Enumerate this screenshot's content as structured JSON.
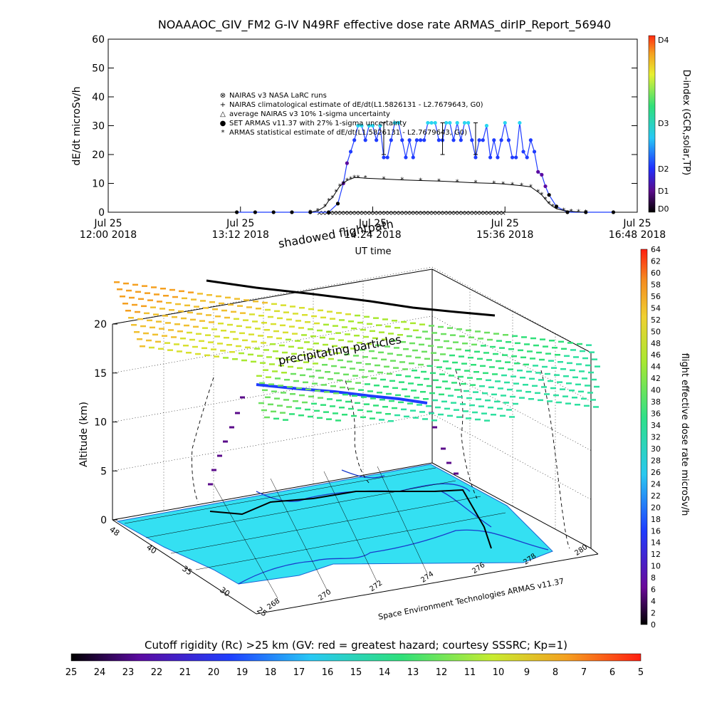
{
  "title": "NOAAAOC_GIV_FM2 G-IV    N49RF   effective dose rate ARMAS_dirIP_Report_56940",
  "colors": {
    "set_armas": "#1f3cff",
    "set_armas_fill": "#29d6f0",
    "nairas": "#000000",
    "armas_stat": "#3a0a5a",
    "map_fill": "#34e0f2",
    "flight_path": "#000000"
  },
  "chart_data": [
    {
      "type": "line",
      "ylabel": "dE/dt microSv/h",
      "xlabel": "UT time",
      "ylim": [
        0,
        60
      ],
      "yticks": [
        0,
        10,
        20,
        30,
        40,
        50,
        60
      ],
      "xticks": [
        {
          "day": "Jul 25",
          "time": "12:00 2018"
        },
        {
          "day": "Jul 25",
          "time": "13:12 2018"
        },
        {
          "day": "Jul 25",
          "time": "14:24 2018"
        },
        {
          "day": "Jul 25",
          "time": "15:36 2018"
        },
        {
          "day": "Jul 25",
          "time": "16:48 2018"
        }
      ],
      "xrange_minutes": [
        0,
        288
      ],
      "legend": [
        {
          "symbol": "⊗",
          "label": "NAIRAS v3 NASA LaRC runs"
        },
        {
          "symbol": "+",
          "label": "NAIRAS climatological estimate of dE/dt(L1.5826131 - L2.7679643, G0)"
        },
        {
          "symbol": "△",
          "label": "average NAIRAS v3 10% 1-sigma uncertainty"
        },
        {
          "symbol": "●",
          "label": "SET ARMAS v11.37 with 27% 1-sigma uncertainty"
        },
        {
          "symbol": "*",
          "label": "ARMAS statistical estimate of dE/dt(L1.5826131 - L2.7679643, G0)"
        }
      ],
      "series": [
        {
          "name": "SET ARMAS v11.37 with 27% 1-sigma uncertainty",
          "x": [
            70,
            80,
            90,
            100,
            110,
            120,
            125,
            128,
            130,
            132,
            134,
            136,
            138,
            140,
            142,
            144,
            146,
            148,
            150,
            152,
            154,
            156,
            158,
            160,
            162,
            164,
            166,
            168,
            170,
            172,
            174,
            176,
            178,
            180,
            182,
            184,
            186,
            188,
            190,
            192,
            194,
            196,
            198,
            200,
            202,
            204,
            206,
            208,
            210,
            212,
            214,
            216,
            218,
            220,
            222,
            224,
            226,
            228,
            230,
            232,
            234,
            236,
            238,
            240,
            244,
            250,
            260,
            275
          ],
          "y": [
            0,
            0,
            0,
            0,
            0,
            0,
            3,
            10,
            17,
            21,
            25,
            30,
            30,
            25,
            30,
            30,
            25,
            30,
            19,
            19,
            25,
            31,
            31,
            25,
            19,
            25,
            19,
            25,
            25,
            25,
            31,
            31,
            31,
            25,
            25,
            31,
            31,
            25,
            31,
            25,
            31,
            31,
            25,
            19,
            25,
            25,
            30,
            19,
            25,
            19,
            25,
            31,
            25,
            19,
            19,
            31,
            21,
            19,
            25,
            21,
            14,
            13,
            9,
            6,
            2,
            0,
            0,
            0
          ]
        },
        {
          "name": "ARMAS statistical estimate of dE/dt(L1.5826131 - L2.7679643, G0)",
          "x": [
            110,
            114,
            118,
            120,
            122,
            124,
            126,
            128,
            130,
            132,
            134,
            136,
            140,
            150,
            160,
            170,
            180,
            190,
            200,
            210,
            215,
            220,
            225,
            230,
            234,
            236,
            238,
            240,
            242,
            244,
            248,
            252,
            256,
            260
          ],
          "y": [
            0,
            0.5,
            2,
            4,
            5,
            7,
            9,
            10,
            11,
            11.5,
            12,
            12,
            11.8,
            11.5,
            11.2,
            11,
            10.8,
            10.5,
            10.2,
            10,
            9.8,
            9.5,
            9.2,
            8.8,
            7,
            6,
            4.5,
            3,
            2,
            1.2,
            0.6,
            0.3,
            0.1,
            0
          ]
        }
      ],
      "colorbar": {
        "label": "D-index (GCR,solar,TP)",
        "ticks": [
          "D0",
          "D1",
          "D2",
          "D3",
          "D4"
        ]
      }
    },
    {
      "type": "scatter",
      "ylabel": "Altitude (km)",
      "zticks": [
        0,
        5,
        10,
        15,
        20
      ],
      "lat_ticks": [
        48,
        40,
        35,
        30,
        25
      ],
      "lon_ticks": [
        268,
        270,
        272,
        274,
        276,
        278,
        280
      ],
      "annotations": [
        "shadowed flightpath",
        "precipitating particles",
        "Space Environment Technologies ARMAS v11.37"
      ],
      "colorbar": {
        "label": "flight effective dose rate microSv/h",
        "min": 0,
        "max": 64,
        "ticks": [
          64,
          62,
          60,
          58,
          56,
          54,
          52,
          50,
          48,
          46,
          44,
          42,
          40,
          38,
          36,
          34,
          32,
          30,
          28,
          26,
          24,
          22,
          20,
          18,
          16,
          14,
          12,
          10,
          8,
          6,
          4,
          2,
          0
        ]
      }
    }
  ],
  "bottom_bar": {
    "label": "Cutoff rigidity (Rc) >25 km (GV: red = greatest hazard; courtesy SSSRC; Kp=1)",
    "ticks": [
      25,
      24,
      23,
      22,
      21,
      20,
      19,
      18,
      17,
      16,
      15,
      14,
      13,
      12,
      11,
      10,
      9,
      8,
      7,
      6,
      5
    ]
  }
}
